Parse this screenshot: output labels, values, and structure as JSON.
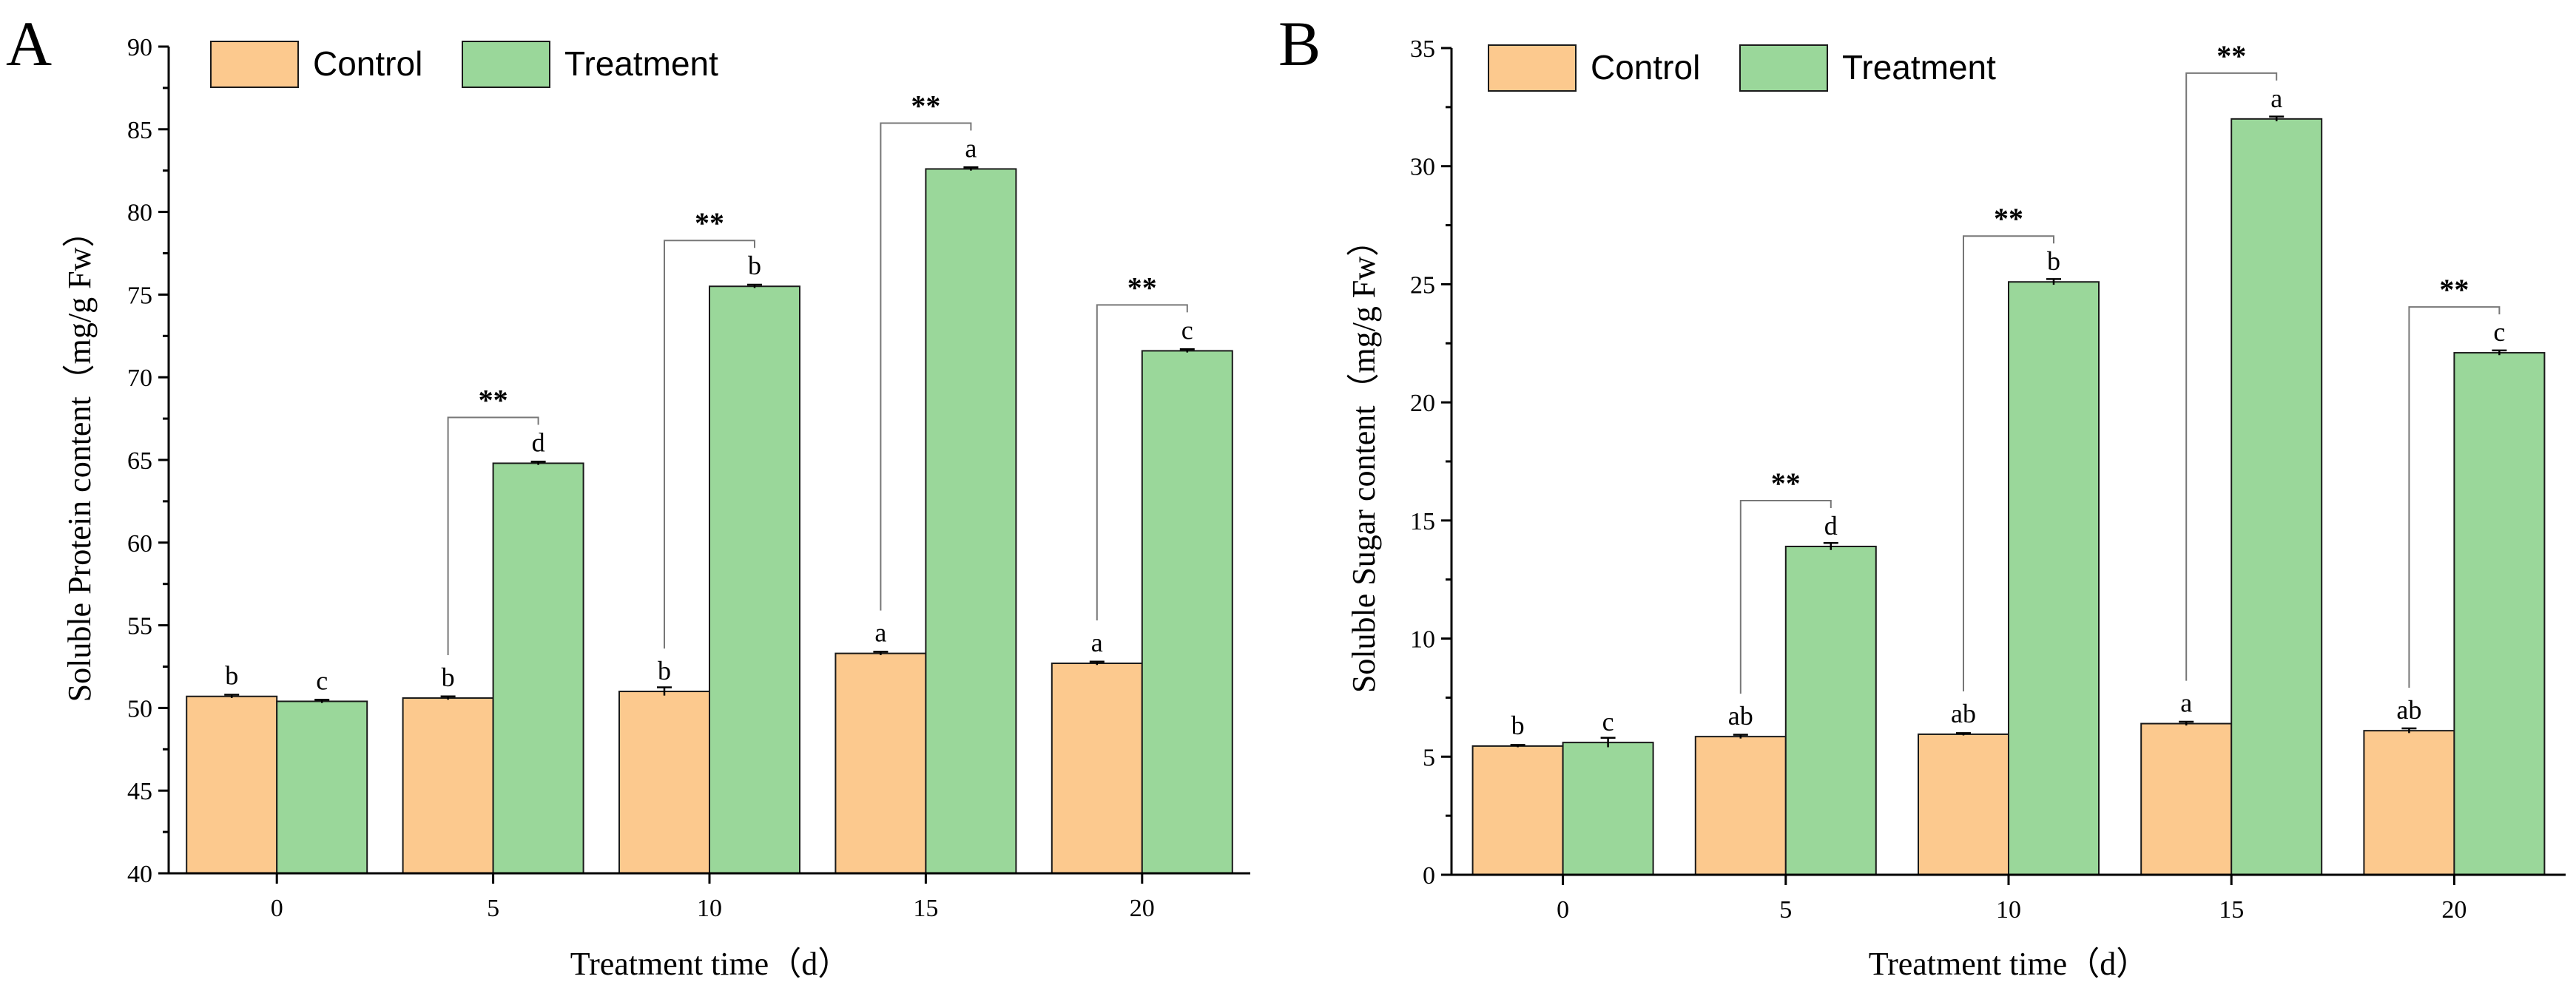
{
  "colors": {
    "control": "#FCC98E",
    "treatment": "#9AD79A",
    "control_stroke": "#1a1a1a",
    "treatment_stroke": "#1a1a1a"
  },
  "chart_data": [
    {
      "type": "bar",
      "panel_label": "A",
      "categories": [
        "0",
        "5",
        "10",
        "15",
        "20"
      ],
      "xlabel": "Treatment time（d）",
      "ylabel": "Soluble Protein content（mg/g Fw）",
      "ylim": [
        40,
        90
      ],
      "yticks": [
        40,
        45,
        50,
        55,
        60,
        65,
        70,
        75,
        80,
        85,
        90
      ],
      "legend": [
        "Control",
        "Treatment"
      ],
      "series": [
        {
          "name": "Control",
          "values": [
            50.7,
            50.6,
            51.0,
            53.3,
            52.7
          ],
          "errors": [
            0.1,
            0.1,
            0.25,
            0.1,
            0.1
          ],
          "letters": [
            "b",
            "b",
            "b",
            "a",
            "a"
          ]
        },
        {
          "name": "Treatment",
          "values": [
            50.4,
            64.8,
            75.5,
            82.6,
            71.6
          ],
          "errors": [
            0.1,
            0.1,
            0.1,
            0.1,
            0.1
          ],
          "letters": [
            "c",
            "d",
            "b",
            "a",
            "c"
          ]
        }
      ],
      "significance": [
        "",
        "**",
        "**",
        "**",
        "**"
      ]
    },
    {
      "type": "bar",
      "panel_label": "B",
      "categories": [
        "0",
        "5",
        "10",
        "15",
        "20"
      ],
      "xlabel": "Treatment time（d）",
      "ylabel": "Soluble Sugar content（mg/g Fw）",
      "ylim": [
        0,
        35
      ],
      "yticks": [
        0,
        5,
        10,
        15,
        20,
        25,
        30,
        35
      ],
      "legend": [
        "Control",
        "Treatment"
      ],
      "series": [
        {
          "name": "Control",
          "values": [
            5.45,
            5.85,
            5.95,
            6.4,
            6.1
          ],
          "errors": [
            0.05,
            0.08,
            0.05,
            0.08,
            0.1
          ],
          "letters": [
            "b",
            "ab",
            "ab",
            "a",
            "ab"
          ]
        },
        {
          "name": "Treatment",
          "values": [
            5.6,
            13.9,
            25.1,
            32.0,
            22.1
          ],
          "errors": [
            0.2,
            0.15,
            0.12,
            0.1,
            0.1
          ],
          "letters": [
            "c",
            "d",
            "b",
            "a",
            "c"
          ]
        }
      ],
      "significance": [
        "",
        "**",
        "**",
        "**",
        "**"
      ]
    }
  ]
}
